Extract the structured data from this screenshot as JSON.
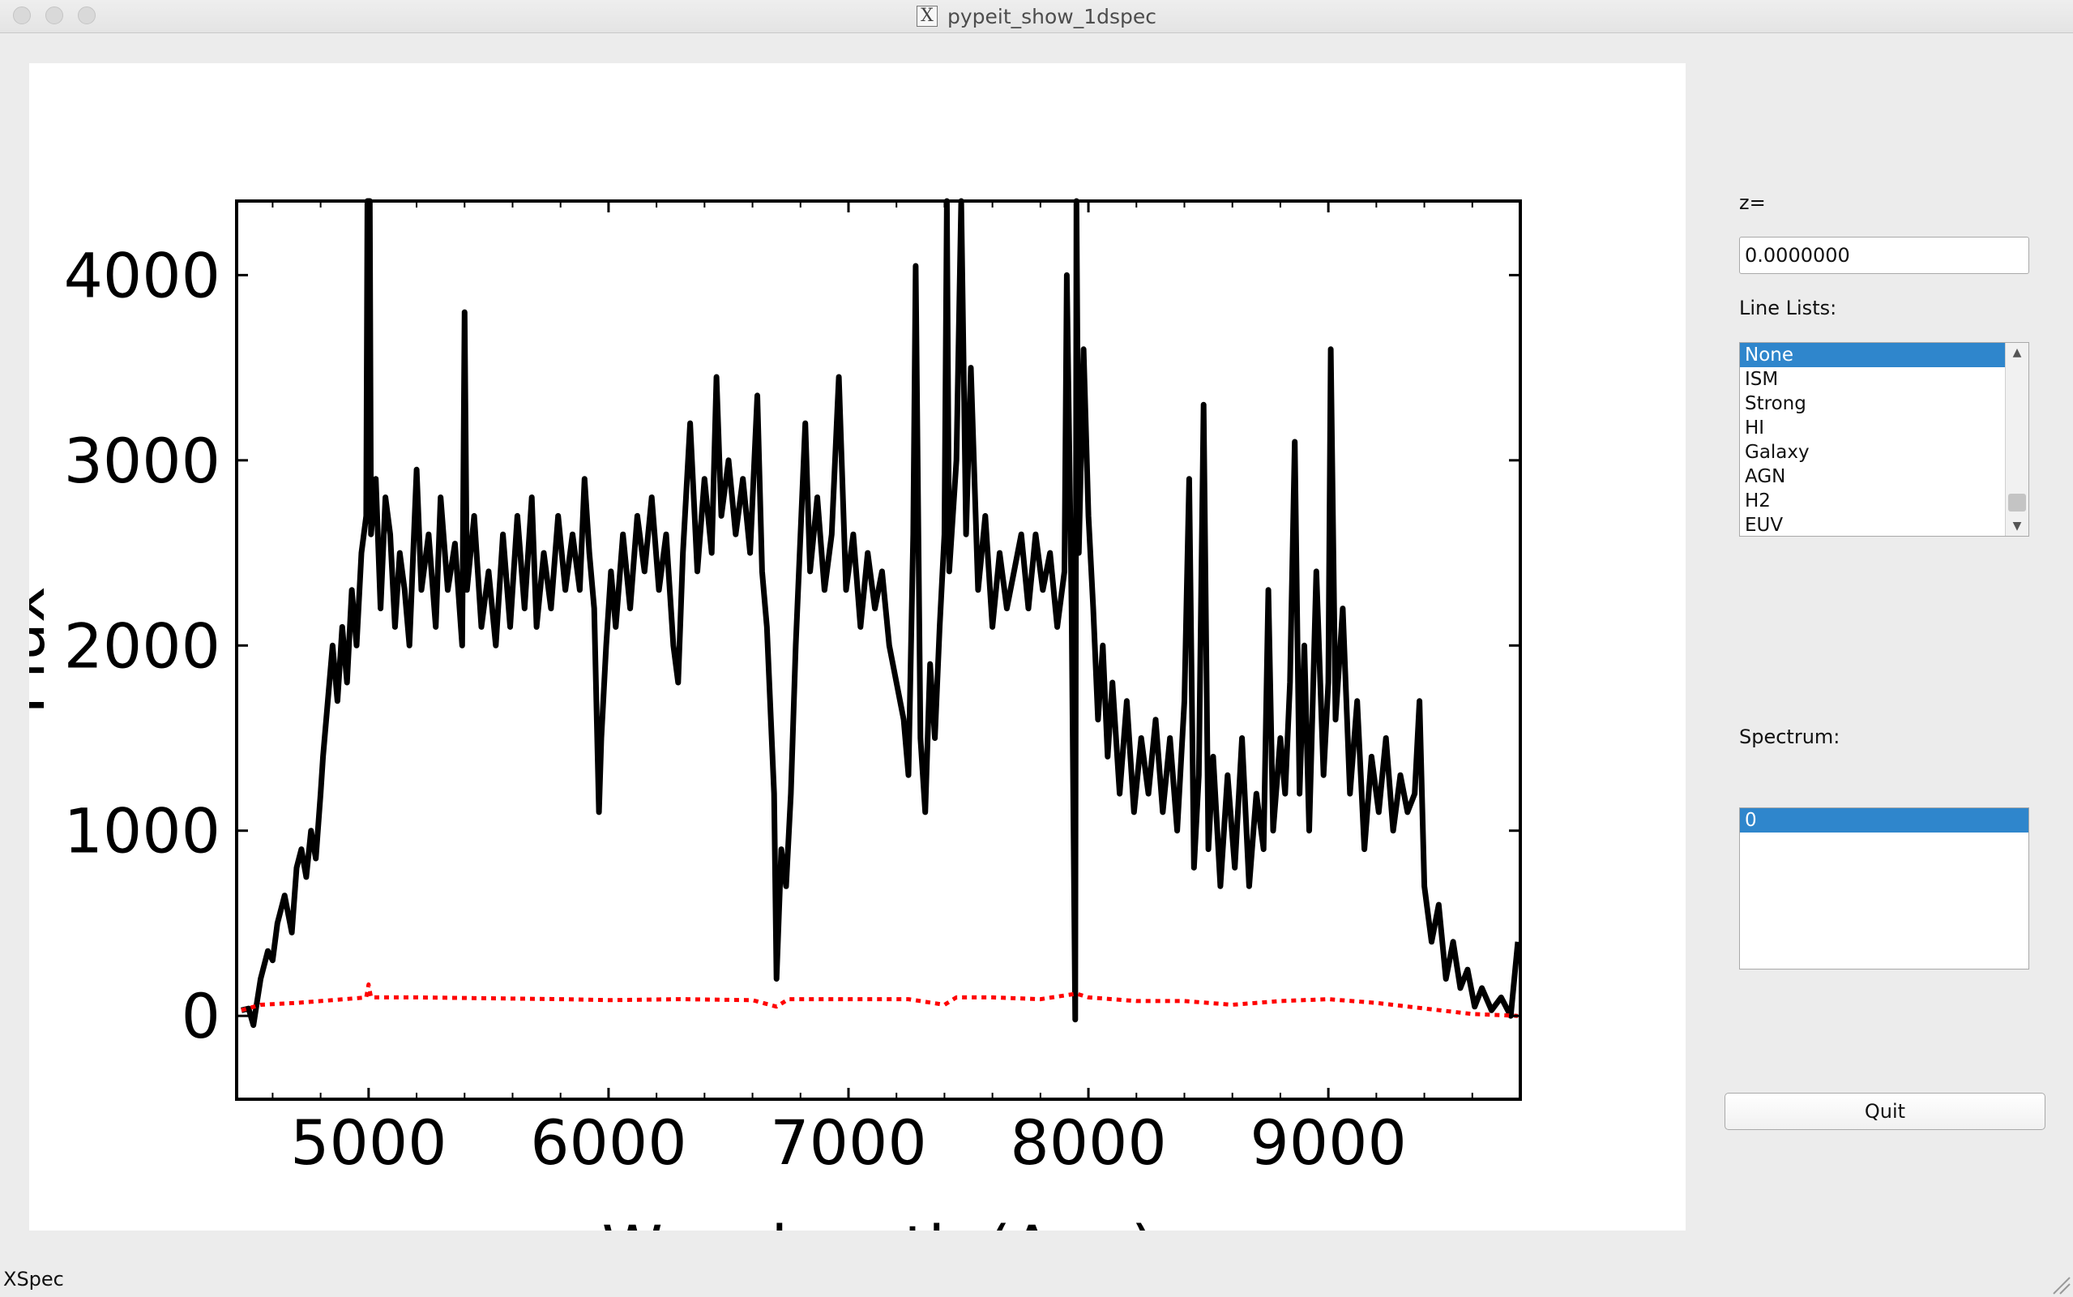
{
  "window": {
    "title": "pypeit_show_1dspec"
  },
  "panel": {
    "z_label": "z=",
    "z_value": "0.0000000",
    "line_lists_label": "Line Lists:",
    "line_lists": [
      {
        "label": "None",
        "selected": true
      },
      {
        "label": "ISM",
        "selected": false
      },
      {
        "label": "Strong",
        "selected": false
      },
      {
        "label": "HI",
        "selected": false
      },
      {
        "label": "Galaxy",
        "selected": false
      },
      {
        "label": "AGN",
        "selected": false
      },
      {
        "label": "H2",
        "selected": false
      },
      {
        "label": "EUV",
        "selected": false
      }
    ],
    "spectrum_label": "Spectrum:",
    "spectra": [
      {
        "label": "0",
        "selected": true
      }
    ],
    "quit_label": "Quit"
  },
  "status": {
    "text": "XSpec"
  },
  "colors": {
    "flux": "#000000",
    "error": "#ff0000",
    "selection": "#2f86cc"
  },
  "chart_data": {
    "type": "line",
    "xlabel": "Wavelength (Ang)",
    "ylabel": "Flux",
    "xlim": [
      4450,
      9800
    ],
    "ylim": [
      -450,
      4400
    ],
    "xticks": [
      5000,
      6000,
      7000,
      8000,
      9000
    ],
    "yticks": [
      0,
      1000,
      2000,
      3000,
      4000
    ],
    "grid": false,
    "series": [
      {
        "style": "solid",
        "color": "#000000",
        "points": [
          [
            4470,
            30
          ],
          [
            4500,
            40
          ],
          [
            4520,
            -50
          ],
          [
            4550,
            200
          ],
          [
            4580,
            350
          ],
          [
            4600,
            300
          ],
          [
            4620,
            500
          ],
          [
            4650,
            650
          ],
          [
            4680,
            450
          ],
          [
            4700,
            800
          ],
          [
            4720,
            900
          ],
          [
            4740,
            750
          ],
          [
            4760,
            1000
          ],
          [
            4780,
            850
          ],
          [
            4800,
            1200
          ],
          [
            4810,
            1400
          ],
          [
            4830,
            1700
          ],
          [
            4850,
            2000
          ],
          [
            4870,
            1700
          ],
          [
            4890,
            2100
          ],
          [
            4910,
            1800
          ],
          [
            4930,
            2300
          ],
          [
            4950,
            2000
          ],
          [
            4970,
            2500
          ],
          [
            4990,
            2700
          ],
          [
            4995,
            4400
          ],
          [
            5005,
            4400
          ],
          [
            5010,
            2600
          ],
          [
            5030,
            2900
          ],
          [
            5050,
            2200
          ],
          [
            5070,
            2800
          ],
          [
            5090,
            2600
          ],
          [
            5110,
            2100
          ],
          [
            5130,
            2500
          ],
          [
            5150,
            2300
          ],
          [
            5170,
            2000
          ],
          [
            5200,
            2950
          ],
          [
            5220,
            2300
          ],
          [
            5250,
            2600
          ],
          [
            5280,
            2100
          ],
          [
            5300,
            2800
          ],
          [
            5330,
            2300
          ],
          [
            5360,
            2550
          ],
          [
            5390,
            2000
          ],
          [
            5400,
            3800
          ],
          [
            5410,
            2300
          ],
          [
            5440,
            2700
          ],
          [
            5470,
            2100
          ],
          [
            5500,
            2400
          ],
          [
            5530,
            2000
          ],
          [
            5560,
            2600
          ],
          [
            5590,
            2100
          ],
          [
            5620,
            2700
          ],
          [
            5650,
            2200
          ],
          [
            5680,
            2800
          ],
          [
            5700,
            2100
          ],
          [
            5730,
            2500
          ],
          [
            5760,
            2200
          ],
          [
            5790,
            2700
          ],
          [
            5820,
            2300
          ],
          [
            5850,
            2600
          ],
          [
            5880,
            2300
          ],
          [
            5900,
            2900
          ],
          [
            5920,
            2500
          ],
          [
            5940,
            2200
          ],
          [
            5960,
            1100
          ],
          [
            5970,
            1500
          ],
          [
            5990,
            2000
          ],
          [
            6010,
            2400
          ],
          [
            6030,
            2100
          ],
          [
            6060,
            2600
          ],
          [
            6090,
            2200
          ],
          [
            6120,
            2700
          ],
          [
            6150,
            2400
          ],
          [
            6180,
            2800
          ],
          [
            6210,
            2300
          ],
          [
            6240,
            2600
          ],
          [
            6270,
            2000
          ],
          [
            6290,
            1800
          ],
          [
            6310,
            2500
          ],
          [
            6340,
            3200
          ],
          [
            6370,
            2400
          ],
          [
            6400,
            2900
          ],
          [
            6430,
            2500
          ],
          [
            6450,
            3450
          ],
          [
            6470,
            2700
          ],
          [
            6500,
            3000
          ],
          [
            6530,
            2600
          ],
          [
            6560,
            2900
          ],
          [
            6590,
            2500
          ],
          [
            6620,
            3350
          ],
          [
            6640,
            2400
          ],
          [
            6660,
            2100
          ],
          [
            6690,
            1200
          ],
          [
            6700,
            200
          ],
          [
            6720,
            900
          ],
          [
            6740,
            700
          ],
          [
            6760,
            1200
          ],
          [
            6780,
            2000
          ],
          [
            6800,
            2600
          ],
          [
            6820,
            3200
          ],
          [
            6840,
            2400
          ],
          [
            6870,
            2800
          ],
          [
            6900,
            2300
          ],
          [
            6930,
            2600
          ],
          [
            6960,
            3450
          ],
          [
            6990,
            2300
          ],
          [
            7020,
            2600
          ],
          [
            7050,
            2100
          ],
          [
            7080,
            2500
          ],
          [
            7110,
            2200
          ],
          [
            7140,
            2400
          ],
          [
            7170,
            2000
          ],
          [
            7200,
            1800
          ],
          [
            7230,
            1600
          ],
          [
            7250,
            1300
          ],
          [
            7270,
            2600
          ],
          [
            7280,
            4050
          ],
          [
            7300,
            1500
          ],
          [
            7320,
            1100
          ],
          [
            7340,
            1900
          ],
          [
            7360,
            1500
          ],
          [
            7380,
            2100
          ],
          [
            7400,
            2600
          ],
          [
            7410,
            4400
          ],
          [
            7420,
            2400
          ],
          [
            7450,
            3000
          ],
          [
            7470,
            4400
          ],
          [
            7490,
            2600
          ],
          [
            7510,
            3500
          ],
          [
            7540,
            2300
          ],
          [
            7570,
            2700
          ],
          [
            7600,
            2100
          ],
          [
            7630,
            2500
          ],
          [
            7660,
            2200
          ],
          [
            7690,
            2400
          ],
          [
            7720,
            2600
          ],
          [
            7750,
            2200
          ],
          [
            7780,
            2600
          ],
          [
            7810,
            2300
          ],
          [
            7840,
            2500
          ],
          [
            7870,
            2100
          ],
          [
            7900,
            2400
          ],
          [
            7910,
            4000
          ],
          [
            7930,
            2200
          ],
          [
            7945,
            -20
          ],
          [
            7950,
            4400
          ],
          [
            7960,
            2500
          ],
          [
            7980,
            3600
          ],
          [
            8000,
            2700
          ],
          [
            8020,
            2200
          ],
          [
            8040,
            1600
          ],
          [
            8060,
            2000
          ],
          [
            8080,
            1400
          ],
          [
            8100,
            1800
          ],
          [
            8130,
            1200
          ],
          [
            8160,
            1700
          ],
          [
            8190,
            1100
          ],
          [
            8220,
            1500
          ],
          [
            8250,
            1200
          ],
          [
            8280,
            1600
          ],
          [
            8310,
            1100
          ],
          [
            8340,
            1500
          ],
          [
            8370,
            1000
          ],
          [
            8400,
            1700
          ],
          [
            8420,
            2900
          ],
          [
            8440,
            800
          ],
          [
            8460,
            1300
          ],
          [
            8480,
            3300
          ],
          [
            8500,
            900
          ],
          [
            8520,
            1400
          ],
          [
            8550,
            700
          ],
          [
            8580,
            1300
          ],
          [
            8610,
            800
          ],
          [
            8640,
            1500
          ],
          [
            8670,
            700
          ],
          [
            8700,
            1200
          ],
          [
            8730,
            900
          ],
          [
            8750,
            2300
          ],
          [
            8770,
            1000
          ],
          [
            8800,
            1500
          ],
          [
            8820,
            1200
          ],
          [
            8840,
            1800
          ],
          [
            8860,
            3100
          ],
          [
            8880,
            1200
          ],
          [
            8900,
            2000
          ],
          [
            8920,
            1000
          ],
          [
            8950,
            2400
          ],
          [
            8980,
            1300
          ],
          [
            9000,
            1800
          ],
          [
            9010,
            3600
          ],
          [
            9030,
            1600
          ],
          [
            9060,
            2200
          ],
          [
            9090,
            1200
          ],
          [
            9120,
            1700
          ],
          [
            9150,
            900
          ],
          [
            9180,
            1400
          ],
          [
            9210,
            1100
          ],
          [
            9240,
            1500
          ],
          [
            9270,
            1000
          ],
          [
            9300,
            1300
          ],
          [
            9330,
            1100
          ],
          [
            9360,
            1200
          ],
          [
            9380,
            1700
          ],
          [
            9400,
            700
          ],
          [
            9430,
            400
          ],
          [
            9460,
            600
          ],
          [
            9490,
            200
          ],
          [
            9520,
            400
          ],
          [
            9550,
            150
          ],
          [
            9580,
            250
          ],
          [
            9610,
            50
          ],
          [
            9640,
            150
          ],
          [
            9680,
            30
          ],
          [
            9720,
            100
          ],
          [
            9760,
            0
          ],
          [
            9790,
            400
          ]
        ]
      },
      {
        "style": "dotted",
        "color": "#ff0000",
        "points": [
          [
            4470,
            30
          ],
          [
            4550,
            60
          ],
          [
            4700,
            70
          ],
          [
            4900,
            90
          ],
          [
            4990,
            100
          ],
          [
            5000,
            170
          ],
          [
            5010,
            100
          ],
          [
            5200,
            100
          ],
          [
            5500,
            95
          ],
          [
            5800,
            90
          ],
          [
            6000,
            85
          ],
          [
            6300,
            90
          ],
          [
            6600,
            85
          ],
          [
            6700,
            50
          ],
          [
            6750,
            90
          ],
          [
            7000,
            90
          ],
          [
            7250,
            90
          ],
          [
            7400,
            60
          ],
          [
            7450,
            100
          ],
          [
            7600,
            100
          ],
          [
            7800,
            90
          ],
          [
            7950,
            120
          ],
          [
            8000,
            100
          ],
          [
            8200,
            80
          ],
          [
            8400,
            80
          ],
          [
            8600,
            60
          ],
          [
            8800,
            80
          ],
          [
            9000,
            90
          ],
          [
            9200,
            70
          ],
          [
            9400,
            40
          ],
          [
            9600,
            10
          ],
          [
            9790,
            0
          ]
        ]
      }
    ]
  }
}
